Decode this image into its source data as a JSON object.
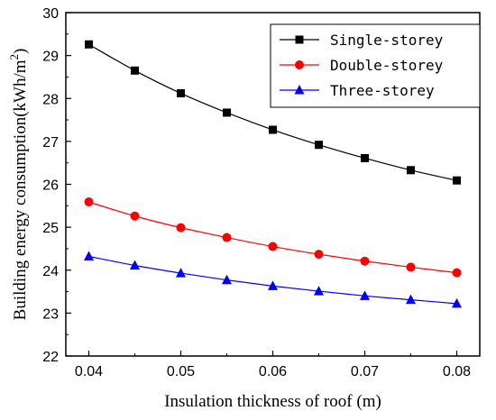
{
  "chart_data": {
    "type": "line",
    "title": "",
    "xlabel": "Insulation thickness of roof (m)",
    "ylabel_main": "Building energy consumption(kWh/m",
    "ylabel_sup": "2",
    "ylabel_close": ")",
    "xlim": [
      0.0375,
      0.0825
    ],
    "ylim": [
      22,
      30
    ],
    "xticks": [
      0.04,
      0.05,
      0.06,
      0.07,
      0.08
    ],
    "xtick_labels": [
      "0.04",
      "0.05",
      "0.06",
      "0.07",
      "0.08"
    ],
    "yticks": [
      22,
      23,
      24,
      25,
      26,
      27,
      28,
      29,
      30
    ],
    "ytick_labels": [
      "22",
      "23",
      "24",
      "25",
      "26",
      "27",
      "28",
      "29",
      "30"
    ],
    "x": [
      0.04,
      0.045,
      0.05,
      0.055,
      0.06,
      0.065,
      0.07,
      0.075,
      0.08
    ],
    "grid": false,
    "legend_position": "top-right",
    "series": [
      {
        "name": "Single-storey",
        "color": "#000000",
        "marker": "square",
        "values": [
          29.26,
          28.65,
          28.12,
          27.67,
          27.27,
          26.92,
          26.61,
          26.33,
          26.09
        ]
      },
      {
        "name": "Double-storey",
        "color": "#ff0000",
        "marker": "circle",
        "values": [
          25.59,
          25.26,
          24.99,
          24.76,
          24.55,
          24.37,
          24.21,
          24.07,
          23.94
        ]
      },
      {
        "name": "Three-storey",
        "color": "#0000ff",
        "marker": "triangle",
        "values": [
          24.32,
          24.11,
          23.93,
          23.77,
          23.63,
          23.51,
          23.4,
          23.31,
          23.22
        ]
      }
    ]
  }
}
